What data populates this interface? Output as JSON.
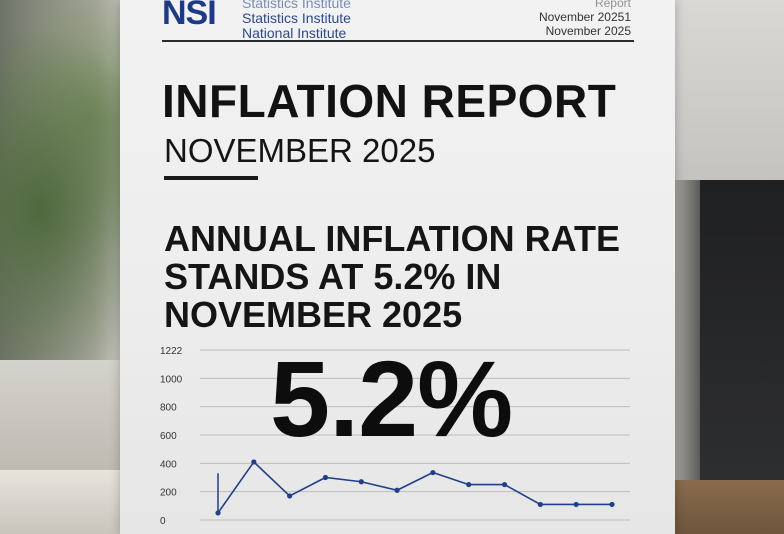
{
  "header": {
    "logo": "NSI",
    "org_lines": [
      "Statistics Institute",
      "Statistics Institute",
      "National Institute"
    ],
    "date_lines": [
      "Report",
      "November 20251",
      "November 2025"
    ]
  },
  "report": {
    "title": "INFLATION REPORT",
    "subtitle": "NOVEMBER 2025"
  },
  "headline": {
    "line1": "ANNUAL INFLATION RATE",
    "line2": "STANDS AT 5.2% IN",
    "line3": "NOVEMBER 2025"
  },
  "big_value": "5.2%",
  "chart_data": {
    "type": "line",
    "y_tick_labels": [
      "0",
      "200",
      "400",
      "600",
      "800",
      "1000",
      "1222"
    ],
    "ylim": [
      0,
      1200
    ],
    "grid": true,
    "series": [
      {
        "values": [
          50,
          410,
          170,
          300,
          270,
          210,
          335,
          250,
          250,
          110,
          110,
          110
        ]
      }
    ],
    "colors": {
      "line": "#1f3f8a",
      "grid": "#bdbdbd"
    }
  }
}
